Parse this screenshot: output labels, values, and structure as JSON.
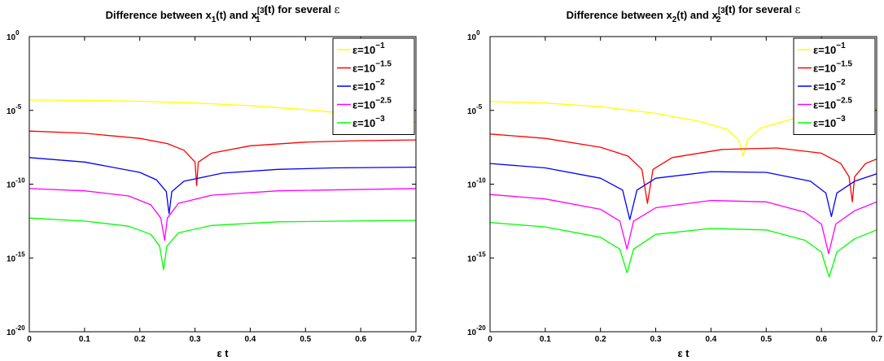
{
  "chart_data": [
    {
      "type": "line",
      "title": {
        "prefix": "Difference between x",
        "sub1": "1",
        "mid1": "(t) and x",
        "sup": "[3]",
        "sub2": "1",
        "suffix": "(t) for several ",
        "symbol": "ε"
      },
      "xlabel": "ε t",
      "ylabel": "",
      "y_scale": "log",
      "xlim": [
        0,
        0.7
      ],
      "ylim_exp": [
        -20,
        0
      ],
      "x_ticks": [
        "0",
        "0.1",
        "0.2",
        "0.3",
        "0.4",
        "0.5",
        "0.6",
        "0.7"
      ],
      "y_ticks": [
        {
          "base": "10",
          "exp": "0"
        },
        {
          "base": "10",
          "exp": "-5"
        },
        {
          "base": "10",
          "exp": "-10"
        },
        {
          "base": "10",
          "exp": "-15"
        },
        {
          "base": "10",
          "exp": "-20"
        }
      ],
      "legend_position": "top-right",
      "series": [
        {
          "name": "ε=10",
          "exp": "−1",
          "color": "#ffff00",
          "points": [
            [
              0,
              -4.3
            ],
            [
              0.1,
              -4.32
            ],
            [
              0.2,
              -4.38
            ],
            [
              0.3,
              -4.5
            ],
            [
              0.4,
              -4.68
            ],
            [
              0.5,
              -4.95
            ],
            [
              0.6,
              -5.3
            ],
            [
              0.7,
              -5.8
            ]
          ]
        },
        {
          "name": "ε=10",
          "exp": "−1.5",
          "color": "#ff0000",
          "dips": [
            {
              "x": 0.303,
              "depth": -10.1
            }
          ],
          "points": [
            [
              0,
              -6.4
            ],
            [
              0.1,
              -6.55
            ],
            [
              0.2,
              -6.9
            ],
            [
              0.25,
              -7.25
            ],
            [
              0.28,
              -7.7
            ],
            [
              0.3,
              -8.5
            ],
            [
              0.303,
              -10.1
            ],
            [
              0.306,
              -8.5
            ],
            [
              0.33,
              -7.9
            ],
            [
              0.4,
              -7.4
            ],
            [
              0.5,
              -7.15
            ],
            [
              0.6,
              -7.05
            ],
            [
              0.7,
              -7.0
            ]
          ]
        },
        {
          "name": "ε=10",
          "exp": "−2",
          "color": "#0000ff",
          "dips": [
            {
              "x": 0.253,
              "depth": -12.0
            }
          ],
          "points": [
            [
              0,
              -8.2
            ],
            [
              0.1,
              -8.5
            ],
            [
              0.2,
              -9.2
            ],
            [
              0.23,
              -9.7
            ],
            [
              0.248,
              -10.5
            ],
            [
              0.253,
              -12.0
            ],
            [
              0.258,
              -10.5
            ],
            [
              0.28,
              -9.8
            ],
            [
              0.35,
              -9.25
            ],
            [
              0.45,
              -9.0
            ],
            [
              0.55,
              -8.9
            ],
            [
              0.7,
              -8.85
            ]
          ]
        },
        {
          "name": "ε=10",
          "exp": "−2.5",
          "color": "#ff00ff",
          "dips": [
            {
              "x": 0.245,
              "depth": -13.8
            }
          ],
          "points": [
            [
              0,
              -10.3
            ],
            [
              0.1,
              -10.45
            ],
            [
              0.18,
              -10.8
            ],
            [
              0.22,
              -11.4
            ],
            [
              0.238,
              -12.3
            ],
            [
              0.245,
              -13.8
            ],
            [
              0.25,
              -12.3
            ],
            [
              0.27,
              -11.3
            ],
            [
              0.33,
              -10.75
            ],
            [
              0.45,
              -10.45
            ],
            [
              0.7,
              -10.3
            ]
          ]
        },
        {
          "name": "ε=10",
          "exp": "−3",
          "color": "#00ff00",
          "dips": [
            {
              "x": 0.243,
              "depth": -15.8
            }
          ],
          "points": [
            [
              0,
              -12.3
            ],
            [
              0.1,
              -12.5
            ],
            [
              0.18,
              -12.85
            ],
            [
              0.22,
              -13.4
            ],
            [
              0.236,
              -14.2
            ],
            [
              0.243,
              -15.8
            ],
            [
              0.249,
              -14.2
            ],
            [
              0.27,
              -13.3
            ],
            [
              0.33,
              -12.8
            ],
            [
              0.45,
              -12.55
            ],
            [
              0.7,
              -12.45
            ]
          ]
        }
      ]
    },
    {
      "type": "line",
      "title": {
        "prefix": "Difference between x",
        "sub1": "2",
        "mid1": "(t) and x",
        "sup": "[3]",
        "sub2": "2",
        "suffix": "(t) for several ",
        "symbol": "ε"
      },
      "xlabel": "ε t",
      "ylabel": "",
      "y_scale": "log",
      "xlim": [
        0,
        0.7
      ],
      "ylim_exp": [
        -20,
        0
      ],
      "x_ticks": [
        "0",
        "0.1",
        "0.2",
        "0.3",
        "0.4",
        "0.5",
        "0.6",
        "0.7"
      ],
      "y_ticks": [
        {
          "base": "10",
          "exp": "0"
        },
        {
          "base": "10",
          "exp": "-5"
        },
        {
          "base": "10",
          "exp": "-10"
        },
        {
          "base": "10",
          "exp": "-15"
        },
        {
          "base": "10",
          "exp": "-20"
        }
      ],
      "legend_position": "top-right",
      "series": [
        {
          "name": "ε=10",
          "exp": "−1",
          "color": "#ffff00",
          "points": [
            [
              0,
              -4.4
            ],
            [
              0.1,
              -4.5
            ],
            [
              0.2,
              -4.75
            ],
            [
              0.3,
              -5.2
            ],
            [
              0.38,
              -5.75
            ],
            [
              0.43,
              -6.3
            ],
            [
              0.45,
              -7.0
            ],
            [
              0.458,
              -8.1
            ],
            [
              0.466,
              -7.0
            ],
            [
              0.49,
              -6.2
            ],
            [
              0.55,
              -5.55
            ],
            [
              0.63,
              -5.1
            ],
            [
              0.7,
              -4.9
            ]
          ]
        },
        {
          "name": "ε=10",
          "exp": "−1.5",
          "color": "#ff0000",
          "points": [
            [
              0,
              -6.6
            ],
            [
              0.1,
              -6.9
            ],
            [
              0.2,
              -7.5
            ],
            [
              0.25,
              -8.1
            ],
            [
              0.275,
              -9.0
            ],
            [
              0.285,
              -11.3
            ],
            [
              0.295,
              -9.0
            ],
            [
              0.33,
              -8.2
            ],
            [
              0.42,
              -7.65
            ],
            [
              0.52,
              -7.55
            ],
            [
              0.6,
              -7.9
            ],
            [
              0.635,
              -8.6
            ],
            [
              0.65,
              -9.5
            ],
            [
              0.656,
              -11.2
            ],
            [
              0.66,
              -9.5
            ],
            [
              0.68,
              -8.6
            ],
            [
              0.7,
              -8.3
            ]
          ]
        },
        {
          "name": "ε=10",
          "exp": "−2",
          "color": "#0000ff",
          "points": [
            [
              0,
              -8.6
            ],
            [
              0.1,
              -8.9
            ],
            [
              0.2,
              -9.6
            ],
            [
              0.24,
              -10.4
            ],
            [
              0.253,
              -12.4
            ],
            [
              0.266,
              -10.4
            ],
            [
              0.3,
              -9.6
            ],
            [
              0.4,
              -9.15
            ],
            [
              0.5,
              -9.2
            ],
            [
              0.58,
              -9.8
            ],
            [
              0.608,
              -10.6
            ],
            [
              0.618,
              -12.2
            ],
            [
              0.628,
              -10.6
            ],
            [
              0.66,
              -9.8
            ],
            [
              0.7,
              -9.3
            ]
          ]
        },
        {
          "name": "ε=10",
          "exp": "−2.5",
          "color": "#ff00ff",
          "points": [
            [
              0,
              -10.7
            ],
            [
              0.1,
              -11.0
            ],
            [
              0.2,
              -11.7
            ],
            [
              0.235,
              -12.5
            ],
            [
              0.248,
              -14.4
            ],
            [
              0.26,
              -12.5
            ],
            [
              0.3,
              -11.6
            ],
            [
              0.4,
              -11.1
            ],
            [
              0.5,
              -11.2
            ],
            [
              0.57,
              -11.9
            ],
            [
              0.6,
              -12.7
            ],
            [
              0.613,
              -14.7
            ],
            [
              0.626,
              -12.7
            ],
            [
              0.66,
              -11.8
            ],
            [
              0.7,
              -11.2
            ]
          ]
        },
        {
          "name": "ε=10",
          "exp": "−3",
          "color": "#00ff00",
          "points": [
            [
              0,
              -12.6
            ],
            [
              0.1,
              -12.9
            ],
            [
              0.2,
              -13.6
            ],
            [
              0.235,
              -14.4
            ],
            [
              0.248,
              -16.0
            ],
            [
              0.26,
              -14.4
            ],
            [
              0.3,
              -13.4
            ],
            [
              0.4,
              -13.0
            ],
            [
              0.5,
              -13.1
            ],
            [
              0.57,
              -13.8
            ],
            [
              0.6,
              -14.6
            ],
            [
              0.614,
              -16.3
            ],
            [
              0.628,
              -14.6
            ],
            [
              0.66,
              -13.7
            ],
            [
              0.7,
              -13.1
            ]
          ]
        }
      ]
    }
  ]
}
